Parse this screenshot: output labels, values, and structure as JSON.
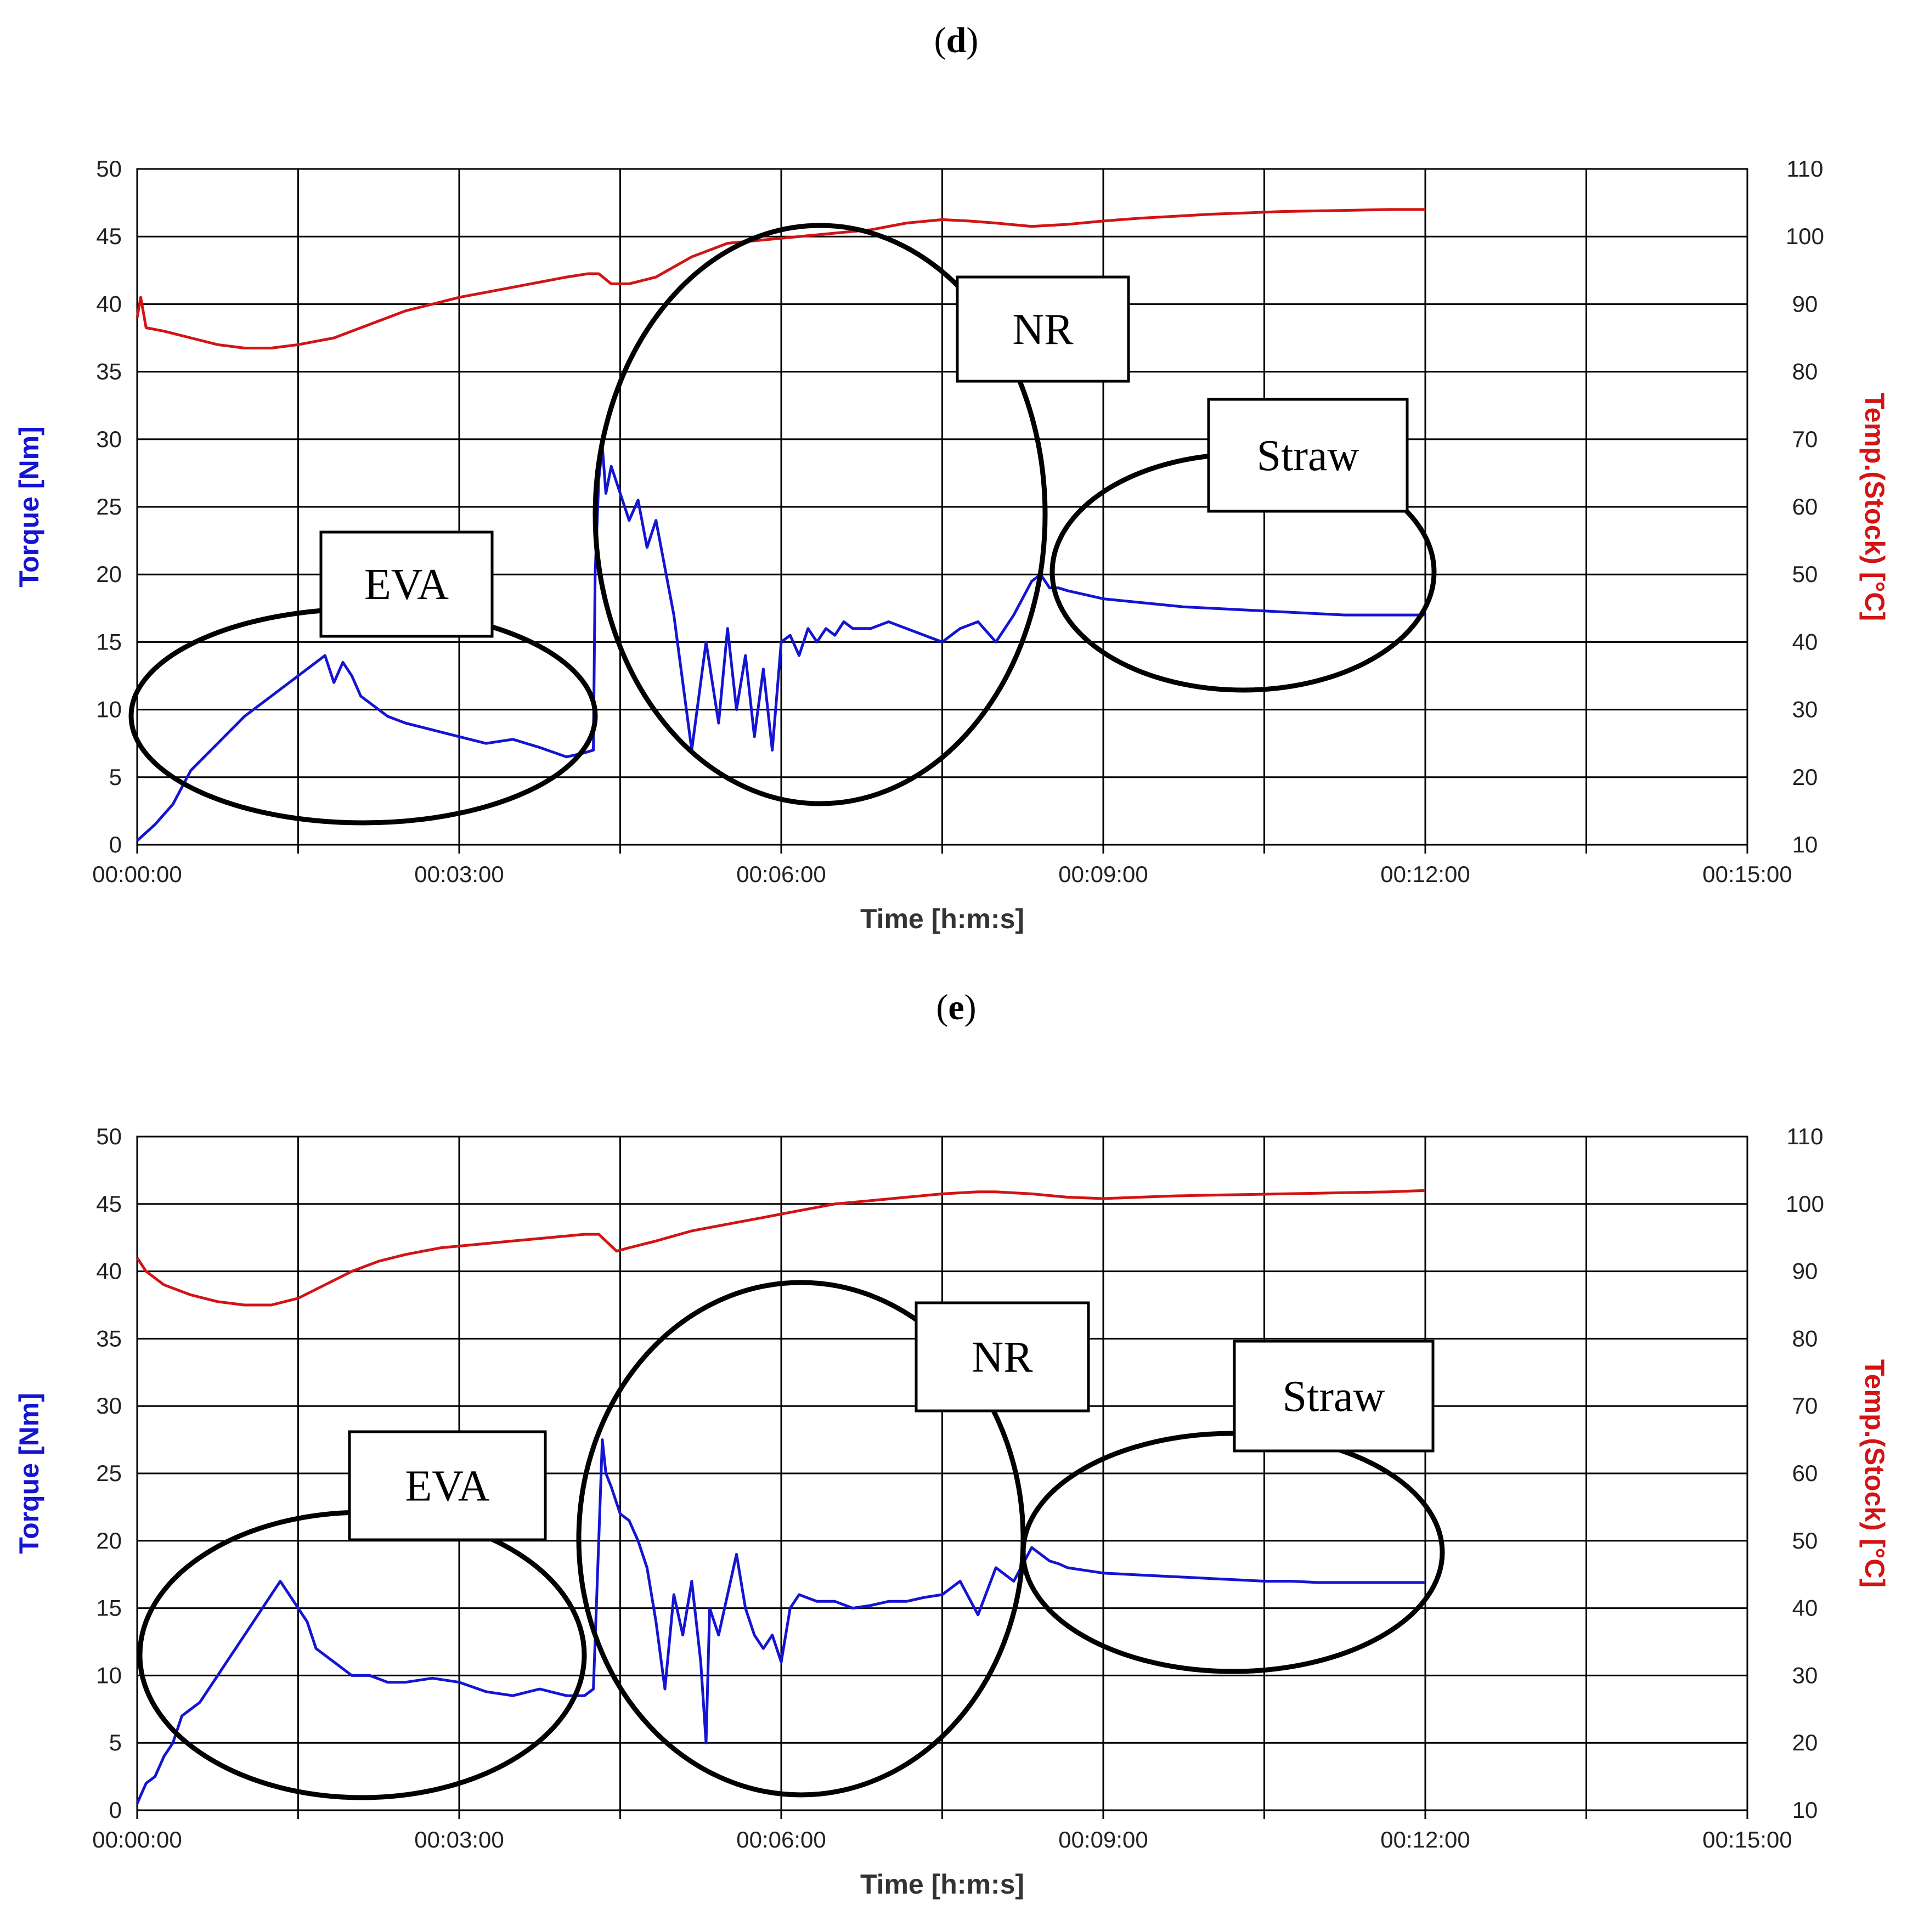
{
  "chart_data": [
    {
      "type": "line",
      "panel_label": "d",
      "xlabel": "Time [h:m:s]",
      "ylabel_left": "Torque [Nm]",
      "ylabel_right": "Temp.(Stock) [°C]",
      "xlim_seconds": [
        0,
        900
      ],
      "xticks": [
        "00:00:00",
        "00:03:00",
        "00:06:00",
        "00:09:00",
        "00:12:00",
        "00:15:00"
      ],
      "ylim_left": [
        0,
        50
      ],
      "yticks_left": [
        0,
        5,
        10,
        15,
        20,
        25,
        30,
        35,
        40,
        45,
        50
      ],
      "ylim_right": [
        10,
        110
      ],
      "yticks_right": [
        10,
        20,
        30,
        40,
        50,
        60,
        70,
        80,
        90,
        100,
        110
      ],
      "grid": true,
      "series": [
        {
          "name": "Torque",
          "axis": "left",
          "color": "#1414d2",
          "x": [
            0,
            10,
            20,
            30,
            45,
            60,
            75,
            90,
            105,
            110,
            115,
            120,
            125,
            130,
            140,
            150,
            165,
            180,
            195,
            210,
            225,
            240,
            250,
            255,
            256,
            258,
            260,
            262,
            265,
            270,
            275,
            280,
            285,
            290,
            300,
            305,
            310,
            318,
            325,
            330,
            335,
            340,
            345,
            350,
            355,
            360,
            365,
            370,
            375,
            380,
            385,
            390,
            395,
            400,
            410,
            420,
            430,
            440,
            450,
            460,
            470,
            480,
            490,
            500,
            505,
            510,
            515,
            520,
            530,
            540,
            555,
            570,
            585,
            600,
            615,
            630,
            645,
            660,
            675,
            690,
            705,
            720
          ],
          "values": [
            0.3,
            1.5,
            3,
            5.5,
            7.5,
            9.5,
            11,
            12.5,
            14,
            12,
            13.5,
            12.5,
            11,
            10.5,
            9.5,
            9,
            8.5,
            8,
            7.5,
            7.8,
            7.2,
            6.5,
            6.8,
            7,
            20,
            27,
            29.5,
            26,
            28,
            26,
            24,
            25.5,
            22,
            24,
            17,
            12,
            7,
            15,
            9,
            16,
            10,
            14,
            8,
            13,
            7,
            15,
            15.5,
            14,
            16,
            15,
            16,
            15.5,
            16.5,
            16,
            16,
            16.5,
            16,
            15.5,
            15,
            16,
            16.5,
            15,
            17,
            19.5,
            20,
            19,
            19,
            18.8,
            18.5,
            18.2,
            18,
            17.8,
            17.6,
            17.5,
            17.4,
            17.3,
            17.2,
            17.1,
            17,
            17,
            17,
            17
          ]
        },
        {
          "name": "Temp.(Stock)",
          "axis": "right",
          "color": "#d21414",
          "x": [
            0,
            2,
            5,
            15,
            30,
            45,
            60,
            75,
            90,
            110,
            130,
            150,
            165,
            180,
            200,
            220,
            240,
            252,
            258,
            265,
            275,
            290,
            310,
            330,
            350,
            370,
            390,
            410,
            430,
            450,
            465,
            480,
            500,
            520,
            540,
            560,
            580,
            600,
            620,
            640,
            660,
            680,
            700,
            720
          ],
          "values": [
            88,
            91,
            86.5,
            86,
            85,
            84,
            83.5,
            83.5,
            84,
            85,
            87,
            89,
            90,
            91,
            92,
            93,
            94,
            94.5,
            94.5,
            93,
            93,
            94,
            97,
            99,
            99.5,
            100,
            100.5,
            101,
            102,
            102.5,
            102.3,
            102,
            101.5,
            101.8,
            102.3,
            102.7,
            103,
            103.3,
            103.5,
            103.7,
            103.8,
            103.9,
            104,
            104
          ]
        }
      ],
      "annotations": [
        "EVA",
        "NR",
        "Straw"
      ]
    },
    {
      "type": "line",
      "panel_label": "e",
      "xlabel": "Time [h:m:s]",
      "ylabel_left": "Torque [Nm]",
      "ylabel_right": "Temp.(Stock) [°C]",
      "xlim_seconds": [
        0,
        900
      ],
      "xticks": [
        "00:00:00",
        "00:03:00",
        "00:06:00",
        "00:09:00",
        "00:12:00",
        "00:15:00"
      ],
      "ylim_left": [
        0,
        50
      ],
      "yticks_left": [
        0,
        5,
        10,
        15,
        20,
        25,
        30,
        35,
        40,
        45,
        50
      ],
      "ylim_right": [
        10,
        110
      ],
      "yticks_right": [
        10,
        20,
        30,
        40,
        50,
        60,
        70,
        80,
        90,
        100,
        110
      ],
      "grid": true,
      "series": [
        {
          "name": "Torque",
          "axis": "left",
          "color": "#1414d2",
          "x": [
            0,
            5,
            10,
            15,
            20,
            25,
            30,
            35,
            40,
            45,
            50,
            55,
            60,
            65,
            70,
            75,
            80,
            85,
            90,
            95,
            100,
            110,
            120,
            130,
            140,
            150,
            165,
            180,
            195,
            210,
            225,
            240,
            250,
            255,
            258,
            260,
            262,
            265,
            270,
            275,
            280,
            285,
            290,
            295,
            300,
            305,
            310,
            315,
            318,
            320,
            325,
            330,
            335,
            340,
            345,
            350,
            355,
            360,
            365,
            370,
            380,
            390,
            400,
            410,
            420,
            430,
            440,
            450,
            460,
            470,
            480,
            490,
            500,
            505,
            510,
            515,
            520,
            530,
            540,
            555,
            570,
            585,
            600,
            615,
            630,
            645,
            660,
            675,
            690,
            705,
            720
          ],
          "values": [
            0.5,
            2,
            2.5,
            4,
            5,
            7,
            7.5,
            8,
            9,
            10,
            11,
            12,
            13,
            14,
            15,
            16,
            17,
            16,
            15,
            14,
            12,
            11,
            10,
            10,
            9.5,
            9.5,
            9.8,
            9.5,
            8.8,
            8.5,
            9,
            8.5,
            8.5,
            9,
            20,
            27.5,
            25,
            24,
            22,
            21.5,
            20,
            18,
            14,
            9,
            16,
            13,
            17,
            11,
            5,
            15,
            13,
            16,
            19,
            15,
            13,
            12,
            13,
            11,
            15,
            16,
            15.5,
            15.5,
            15,
            15.2,
            15.5,
            15.5,
            15.8,
            16,
            17,
            14.5,
            18,
            17,
            19.5,
            19,
            18.5,
            18.3,
            18,
            17.8,
            17.6,
            17.5,
            17.4,
            17.3,
            17.2,
            17.1,
            17,
            17,
            16.9,
            16.9,
            16.9,
            16.9,
            16.9
          ]
        },
        {
          "name": "Temp.(Stock)",
          "axis": "right",
          "color": "#d21414",
          "x": [
            0,
            5,
            15,
            30,
            45,
            60,
            75,
            90,
            105,
            120,
            135,
            150,
            170,
            190,
            210,
            230,
            250,
            258,
            262,
            268,
            275,
            290,
            310,
            330,
            350,
            370,
            390,
            410,
            430,
            450,
            470,
            480,
            500,
            520,
            540,
            560,
            580,
            600,
            620,
            640,
            660,
            680,
            700,
            720
          ],
          "values": [
            92,
            90,
            88,
            86.5,
            85.5,
            85,
            85,
            86,
            88,
            90,
            91.5,
            92.5,
            93.5,
            94,
            94.5,
            95,
            95.5,
            95.5,
            94.5,
            93,
            93.5,
            94.5,
            96,
            97,
            98,
            99,
            100,
            100.5,
            101,
            101.5,
            101.8,
            101.8,
            101.5,
            101,
            100.8,
            101,
            101.2,
            101.3,
            101.4,
            101.5,
            101.6,
            101.7,
            101.8,
            102
          ]
        }
      ],
      "annotations": [
        "EVA",
        "NR",
        "Straw"
      ]
    }
  ]
}
